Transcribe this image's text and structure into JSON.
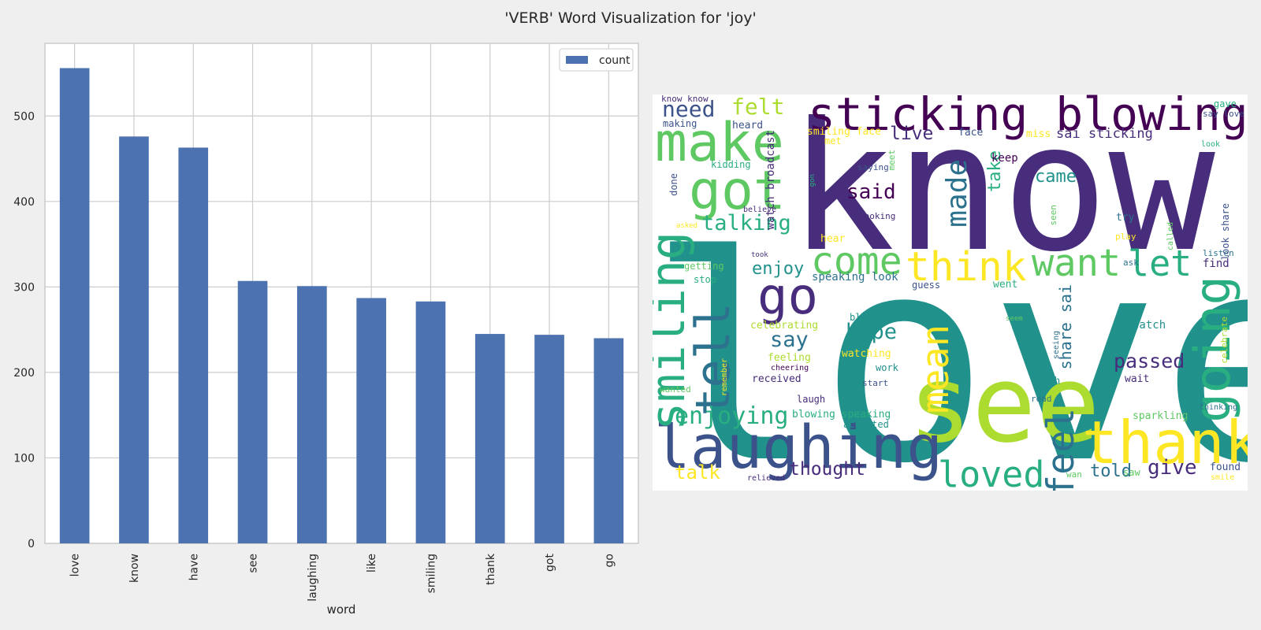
{
  "title": "'VERB' Word Visualization for 'joy'",
  "chart_data": {
    "type": "bar",
    "categories": [
      "love",
      "know",
      "have",
      "see",
      "laughing",
      "like",
      "smiling",
      "thank",
      "got",
      "go"
    ],
    "series": [
      {
        "name": "count",
        "values": [
          556,
          476,
          463,
          307,
          301,
          287,
          283,
          245,
          244,
          240
        ],
        "color": "#4c72b0"
      }
    ],
    "xlabel": "word",
    "ylabel": "",
    "ylim": [
      0,
      585
    ],
    "yticks": [
      0,
      100,
      200,
      300,
      400,
      500
    ],
    "grid": true,
    "legend": "top-right"
  },
  "wordcloud": {
    "palette": [
      "#440154",
      "#472d7b",
      "#3b528b",
      "#2c728e",
      "#21918c",
      "#28ae80",
      "#5ec962",
      "#addc30",
      "#fde725"
    ],
    "words": [
      {
        "text": "love",
        "color": 4
      },
      {
        "text": "know",
        "color": 1
      },
      {
        "text": "see",
        "color": 7
      },
      {
        "text": "sticking blowing",
        "color": 0
      },
      {
        "text": "laughing",
        "color": 2
      },
      {
        "text": "thank",
        "color": 8
      },
      {
        "text": "make",
        "color": 6
      },
      {
        "text": "got",
        "color": 6
      },
      {
        "text": "go",
        "color": 1
      },
      {
        "text": "want",
        "color": 6
      },
      {
        "text": "think",
        "color": 8
      },
      {
        "text": "come",
        "color": 6
      },
      {
        "text": "going",
        "color": 5
      },
      {
        "text": "smiling",
        "color": 5
      },
      {
        "text": "tell",
        "color": 3
      },
      {
        "text": "loved",
        "color": 5
      },
      {
        "text": "mean",
        "color": 8
      },
      {
        "text": "feel",
        "color": 3
      },
      {
        "text": "let",
        "color": 5
      },
      {
        "text": "made",
        "color": 3
      },
      {
        "text": "enjoying",
        "color": 5
      },
      {
        "text": "need",
        "color": 2
      },
      {
        "text": "felt",
        "color": 7
      },
      {
        "text": "talking",
        "color": 5
      },
      {
        "text": "said",
        "color": 0
      },
      {
        "text": "hope",
        "color": 4
      },
      {
        "text": "say",
        "color": 3
      },
      {
        "text": "passed",
        "color": 1
      },
      {
        "text": "give",
        "color": 1
      },
      {
        "text": "thought",
        "color": 1
      },
      {
        "text": "told",
        "color": 3
      },
      {
        "text": "talk",
        "color": 8
      },
      {
        "text": "came",
        "color": 4
      },
      {
        "text": "take",
        "color": 5
      },
      {
        "text": "live",
        "color": 1
      },
      {
        "text": "enjoy",
        "color": 4
      },
      {
        "text": "share sai",
        "color": 3
      },
      {
        "text": "sai sticking",
        "color": 1
      },
      {
        "text": "speaking look",
        "color": 3
      },
      {
        "text": "watch broadcast",
        "color": 1
      },
      {
        "text": "smiling face",
        "color": 8
      },
      {
        "text": "watching",
        "color": 8
      },
      {
        "text": "feeling",
        "color": 7
      },
      {
        "text": "celebrating",
        "color": 7
      },
      {
        "text": "blowing speaking",
        "color": 5
      },
      {
        "text": "received",
        "color": 1
      },
      {
        "text": "watch",
        "color": 4
      },
      {
        "text": "sparkling",
        "color": 6
      },
      {
        "text": "keep",
        "color": 0
      },
      {
        "text": "heard",
        "color": 2
      },
      {
        "text": "face",
        "color": 2
      },
      {
        "text": "miss",
        "color": 8
      },
      {
        "text": "met",
        "color": 8
      },
      {
        "text": "making",
        "color": 2
      },
      {
        "text": "kidding",
        "color": 5
      },
      {
        "text": "meet",
        "color": 6
      },
      {
        "text": "saying",
        "color": 2
      },
      {
        "text": "looking",
        "color": 1
      },
      {
        "text": "believe",
        "color": 1
      },
      {
        "text": "done",
        "color": 2
      },
      {
        "text": "hear",
        "color": 8
      },
      {
        "text": "getting",
        "color": 6
      },
      {
        "text": "stop",
        "color": 5
      },
      {
        "text": "guess",
        "color": 2
      },
      {
        "text": "went",
        "color": 5
      },
      {
        "text": "blessed",
        "color": 4
      },
      {
        "text": "try",
        "color": 3
      },
      {
        "text": "find",
        "color": 1
      },
      {
        "text": "ask",
        "color": 3
      },
      {
        "text": "play",
        "color": 8
      },
      {
        "text": "listen",
        "color": 3
      },
      {
        "text": "look share",
        "color": 2
      },
      {
        "text": "called",
        "color": 6
      },
      {
        "text": "celebrate",
        "color": 7
      },
      {
        "text": "wish",
        "color": 4
      },
      {
        "text": "wait",
        "color": 1
      },
      {
        "text": "read",
        "color": 3
      },
      {
        "text": "work",
        "color": 4
      },
      {
        "text": "start",
        "color": 2
      },
      {
        "text": "cheering",
        "color": 0
      },
      {
        "text": "laugh",
        "color": 1
      },
      {
        "text": "accepted",
        "color": 4
      },
      {
        "text": "relieved",
        "color": 1
      },
      {
        "text": "found",
        "color": 2
      },
      {
        "text": "saw",
        "color": 6
      },
      {
        "text": "wan",
        "color": 6
      },
      {
        "text": "smile",
        "color": 8
      },
      {
        "text": "thinking",
        "color": 3
      },
      {
        "text": "seeing",
        "color": 3
      },
      {
        "text": "seem",
        "color": 6
      },
      {
        "text": "remember",
        "color": 8
      },
      {
        "text": "wanted",
        "color": 6
      },
      {
        "text": "asked",
        "color": 8
      },
      {
        "text": "took",
        "color": 1
      },
      {
        "text": "seen",
        "color": 6
      },
      {
        "text": "gon",
        "color": 5
      },
      {
        "text": "know know",
        "color": 1
      },
      {
        "text": "say love",
        "color": 2
      },
      {
        "text": "gave",
        "color": 5
      },
      {
        "text": "look",
        "color": 5
      }
    ]
  }
}
